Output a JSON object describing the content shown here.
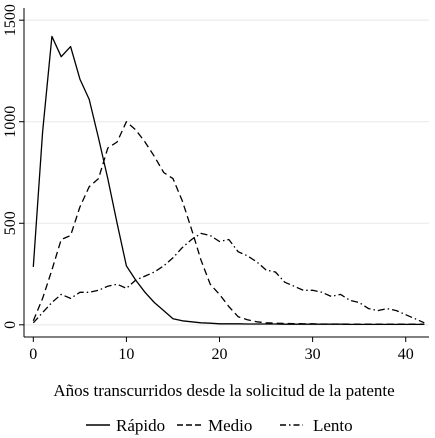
{
  "chart_data": {
    "type": "line",
    "title": "",
    "xlabel": "Años transcurridos desde la solicitud de la patente",
    "ylabel": "",
    "xlim": [
      -1,
      42.5
    ],
    "ylim": [
      -60,
      1560
    ],
    "xticks": [
      0,
      10,
      20,
      30,
      40
    ],
    "xtick_labels": [
      "0",
      "10",
      "20",
      "30",
      "40"
    ],
    "yticks": [
      0,
      500,
      1000,
      1500
    ],
    "ytick_labels": [
      "0",
      "500",
      "1000",
      "1500"
    ],
    "grid": true,
    "legend_position": "bottom",
    "series": [
      {
        "name": "Rápido",
        "style": "solid",
        "x": [
          0,
          1,
          2,
          3,
          4,
          5,
          6,
          7,
          8,
          9,
          10,
          11,
          12,
          13,
          14,
          15,
          16,
          17,
          18,
          19,
          20,
          21,
          22,
          23,
          24,
          25,
          26,
          27,
          28,
          29,
          30,
          31,
          32,
          33,
          34,
          35,
          36,
          37,
          38,
          39,
          40,
          41,
          42
        ],
        "values": [
          285,
          950,
          1420,
          1320,
          1370,
          1210,
          1110,
          920,
          720,
          500,
          290,
          220,
          160,
          110,
          70,
          30,
          20,
          15,
          10,
          8,
          5,
          5,
          5,
          4,
          4,
          4,
          4,
          3,
          3,
          3,
          3,
          3,
          3,
          3,
          2,
          2,
          2,
          2,
          2,
          2,
          2,
          2,
          2
        ]
      },
      {
        "name": "Medio",
        "style": "dashed",
        "x": [
          0,
          1,
          2,
          3,
          4,
          5,
          6,
          7,
          8,
          9,
          10,
          11,
          12,
          13,
          14,
          15,
          16,
          17,
          18,
          19,
          20,
          21,
          22,
          23,
          24,
          25,
          26,
          27,
          28,
          29,
          30,
          31,
          32,
          33,
          34,
          35,
          36,
          37,
          38,
          39,
          40,
          41,
          42
        ],
        "values": [
          20,
          130,
          270,
          420,
          440,
          580,
          680,
          720,
          870,
          900,
          1000,
          960,
          900,
          830,
          750,
          720,
          610,
          470,
          320,
          200,
          150,
          90,
          40,
          25,
          15,
          10,
          8,
          7,
          6,
          5,
          5,
          4,
          4,
          4,
          3,
          3,
          3,
          3,
          3,
          3,
          3,
          3,
          3
        ]
      },
      {
        "name": "Lento",
        "style": "dashdot",
        "x": [
          0,
          1,
          2,
          3,
          4,
          5,
          6,
          7,
          8,
          9,
          10,
          11,
          12,
          13,
          14,
          15,
          16,
          17,
          18,
          19,
          20,
          21,
          22,
          23,
          24,
          25,
          26,
          27,
          28,
          29,
          30,
          31,
          32,
          33,
          34,
          35,
          36,
          37,
          38,
          39,
          40,
          41,
          42
        ],
        "values": [
          10,
          60,
          110,
          150,
          130,
          160,
          160,
          170,
          190,
          200,
          180,
          220,
          240,
          260,
          290,
          330,
          380,
          420,
          450,
          440,
          410,
          420,
          360,
          340,
          310,
          270,
          260,
          210,
          190,
          170,
          170,
          160,
          140,
          150,
          120,
          110,
          80,
          70,
          80,
          70,
          50,
          30,
          10
        ]
      }
    ]
  }
}
